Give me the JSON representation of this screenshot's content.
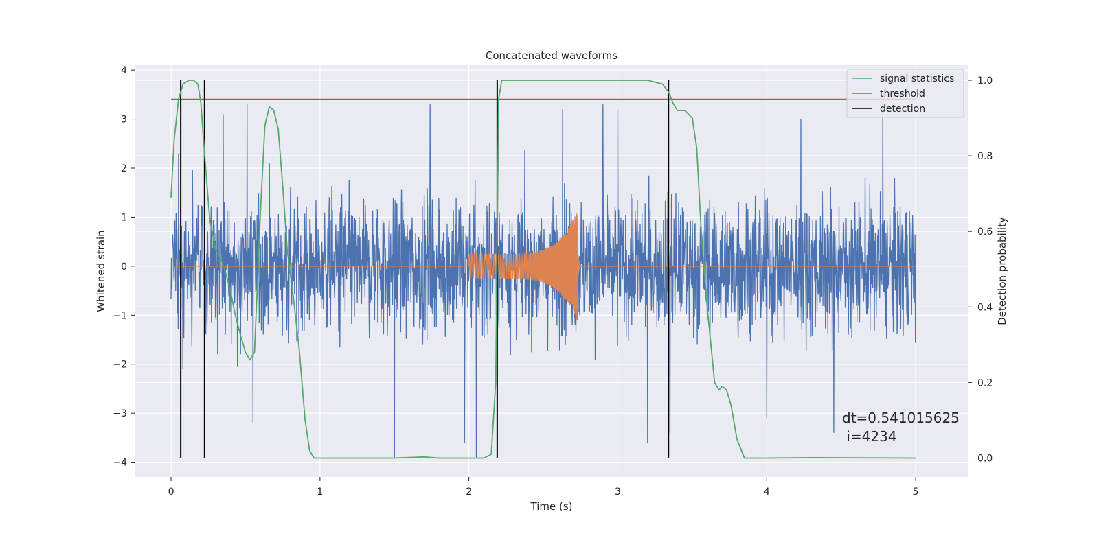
{
  "chart_data": {
    "type": "line",
    "title": "Concatenated waveforms",
    "xlabel": "Time (s)",
    "ylabel": "Whitened strain",
    "ylabel_right": "Detection probability",
    "xlim": [
      -0.24,
      5.35
    ],
    "ylim": [
      -4.3,
      4.1
    ],
    "ylim_right": [
      -0.05,
      1.04
    ],
    "xticks": [
      0,
      1,
      2,
      3,
      4,
      5
    ],
    "yticks": [
      -4,
      -3,
      -2,
      -1,
      0,
      1,
      2,
      3,
      4
    ],
    "yticks_right": [
      0.0,
      0.2,
      0.4,
      0.6,
      0.8,
      1.0
    ],
    "xtick_labels": [
      "0",
      "1",
      "2",
      "3",
      "4",
      "5"
    ],
    "ytick_labels": [
      "−4",
      "−3",
      "−2",
      "−1",
      "0",
      "1",
      "2",
      "3",
      "4"
    ],
    "ytick_labels_right": [
      "0.0",
      "0.2",
      "0.4",
      "0.6",
      "0.8",
      "1.0"
    ],
    "grid": true,
    "legend_position": "top-right",
    "background_color": "#eaeaf2",
    "colors": {
      "strain": "#4c72b0",
      "template": "#dd8452",
      "signal_statistics": "#55a868",
      "threshold": "#c44e52",
      "detection": "#000000"
    },
    "legend": [
      "signal statistics",
      "threshold",
      "detection"
    ],
    "series": [
      {
        "name": "signal statistics",
        "axis": "right",
        "x": [
          0.0,
          0.02,
          0.05,
          0.08,
          0.12,
          0.15,
          0.18,
          0.2,
          0.23,
          0.26,
          0.3,
          0.33,
          0.36,
          0.4,
          0.43,
          0.47,
          0.5,
          0.53,
          0.56,
          0.6,
          0.63,
          0.66,
          0.69,
          0.72,
          0.75,
          0.78,
          0.82,
          0.86,
          0.9,
          0.93,
          0.96,
          1.0,
          1.5,
          1.7,
          1.8,
          2.1,
          2.15,
          2.18,
          2.2,
          2.22,
          2.3,
          2.5,
          3.0,
          3.2,
          3.3,
          3.34,
          3.37,
          3.4,
          3.45,
          3.5,
          3.53,
          3.56,
          3.6,
          3.65,
          3.68,
          3.7,
          3.73,
          3.76,
          3.8,
          3.85,
          4.0,
          4.3,
          5.0
        ],
        "values": [
          0.69,
          0.84,
          0.95,
          0.99,
          1.0,
          1.0,
          0.99,
          0.94,
          0.78,
          0.63,
          0.55,
          0.53,
          0.5,
          0.44,
          0.38,
          0.32,
          0.28,
          0.26,
          0.28,
          0.65,
          0.88,
          0.93,
          0.92,
          0.87,
          0.72,
          0.55,
          0.43,
          0.29,
          0.1,
          0.02,
          0.0,
          0.0,
          0.0,
          0.003,
          0.0,
          0.0,
          0.01,
          0.2,
          0.95,
          1.0,
          1.0,
          1.0,
          1.0,
          1.0,
          0.99,
          0.97,
          0.94,
          0.92,
          0.92,
          0.9,
          0.82,
          0.6,
          0.4,
          0.2,
          0.18,
          0.19,
          0.18,
          0.14,
          0.05,
          0.0,
          0.0,
          0.001,
          0.0
        ]
      },
      {
        "name": "threshold",
        "axis": "right",
        "x": [
          0.0,
          5.0
        ],
        "values": [
          0.95,
          0.95
        ]
      },
      {
        "name": "detection",
        "axis": "right",
        "x": [
          0.065,
          0.225,
          2.19,
          3.34
        ]
      },
      {
        "name": "",
        "role": "strain",
        "axis": "left",
        "x_range": [
          0,
          5
        ],
        "typical_range": [
          -2.2,
          2.4
        ],
        "extremes": [
          {
            "x": 0.05,
            "value": 2.3
          },
          {
            "x": 0.08,
            "value": -2.1
          },
          {
            "x": 0.35,
            "value": 3.1
          },
          {
            "x": 0.51,
            "value": 3.3
          },
          {
            "x": 0.55,
            "value": -3.2
          },
          {
            "x": 1.5,
            "value": -3.9
          },
          {
            "x": 1.74,
            "value": 3.3
          },
          {
            "x": 1.97,
            "value": -3.6
          },
          {
            "x": 2.05,
            "value": -3.9
          },
          {
            "x": 2.63,
            "value": 3.2
          },
          {
            "x": 2.9,
            "value": 3.3
          },
          {
            "x": 3.0,
            "value": 3.2
          },
          {
            "x": 3.2,
            "value": -3.6
          },
          {
            "x": 3.35,
            "value": -3.4
          },
          {
            "x": 4.0,
            "value": -3.1
          },
          {
            "x": 4.23,
            "value": 3.0
          },
          {
            "x": 4.45,
            "value": -3.4
          },
          {
            "x": 4.78,
            "value": 3.3
          }
        ]
      },
      {
        "name": "",
        "role": "template",
        "axis": "left",
        "chirp_start": 2.0,
        "chirp_end": 2.73,
        "amplitude_start": 0.25,
        "amplitude_peak": 1.15
      }
    ],
    "annotation": {
      "line1": "dt=0.541015625",
      "line2": " i=4234"
    }
  }
}
